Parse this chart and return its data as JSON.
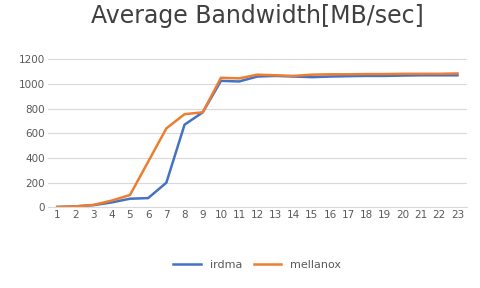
{
  "title": "Average Bandwidth[MB/sec]",
  "x": [
    1,
    2,
    3,
    4,
    5,
    6,
    7,
    8,
    9,
    10,
    11,
    12,
    13,
    14,
    15,
    16,
    17,
    18,
    19,
    20,
    21,
    22,
    23
  ],
  "irdma": [
    3,
    8,
    18,
    40,
    70,
    75,
    200,
    670,
    770,
    1025,
    1020,
    1060,
    1065,
    1060,
    1055,
    1060,
    1063,
    1065,
    1065,
    1068,
    1070,
    1070,
    1070
  ],
  "mellanox": [
    3,
    8,
    20,
    55,
    100,
    370,
    640,
    755,
    770,
    1050,
    1045,
    1075,
    1070,
    1065,
    1075,
    1078,
    1078,
    1080,
    1080,
    1082,
    1082,
    1082,
    1085
  ],
  "irdma_color": "#4472C4",
  "mellanox_color": "#ED7D31",
  "ylim": [
    0,
    1400
  ],
  "yticks": [
    0,
    200,
    400,
    600,
    800,
    1000,
    1200
  ],
  "bg_color": "#ffffff",
  "grid_color": "#d9d9d9",
  "title_fontsize": 17,
  "legend_labels": [
    "irdma",
    "mellanox"
  ]
}
